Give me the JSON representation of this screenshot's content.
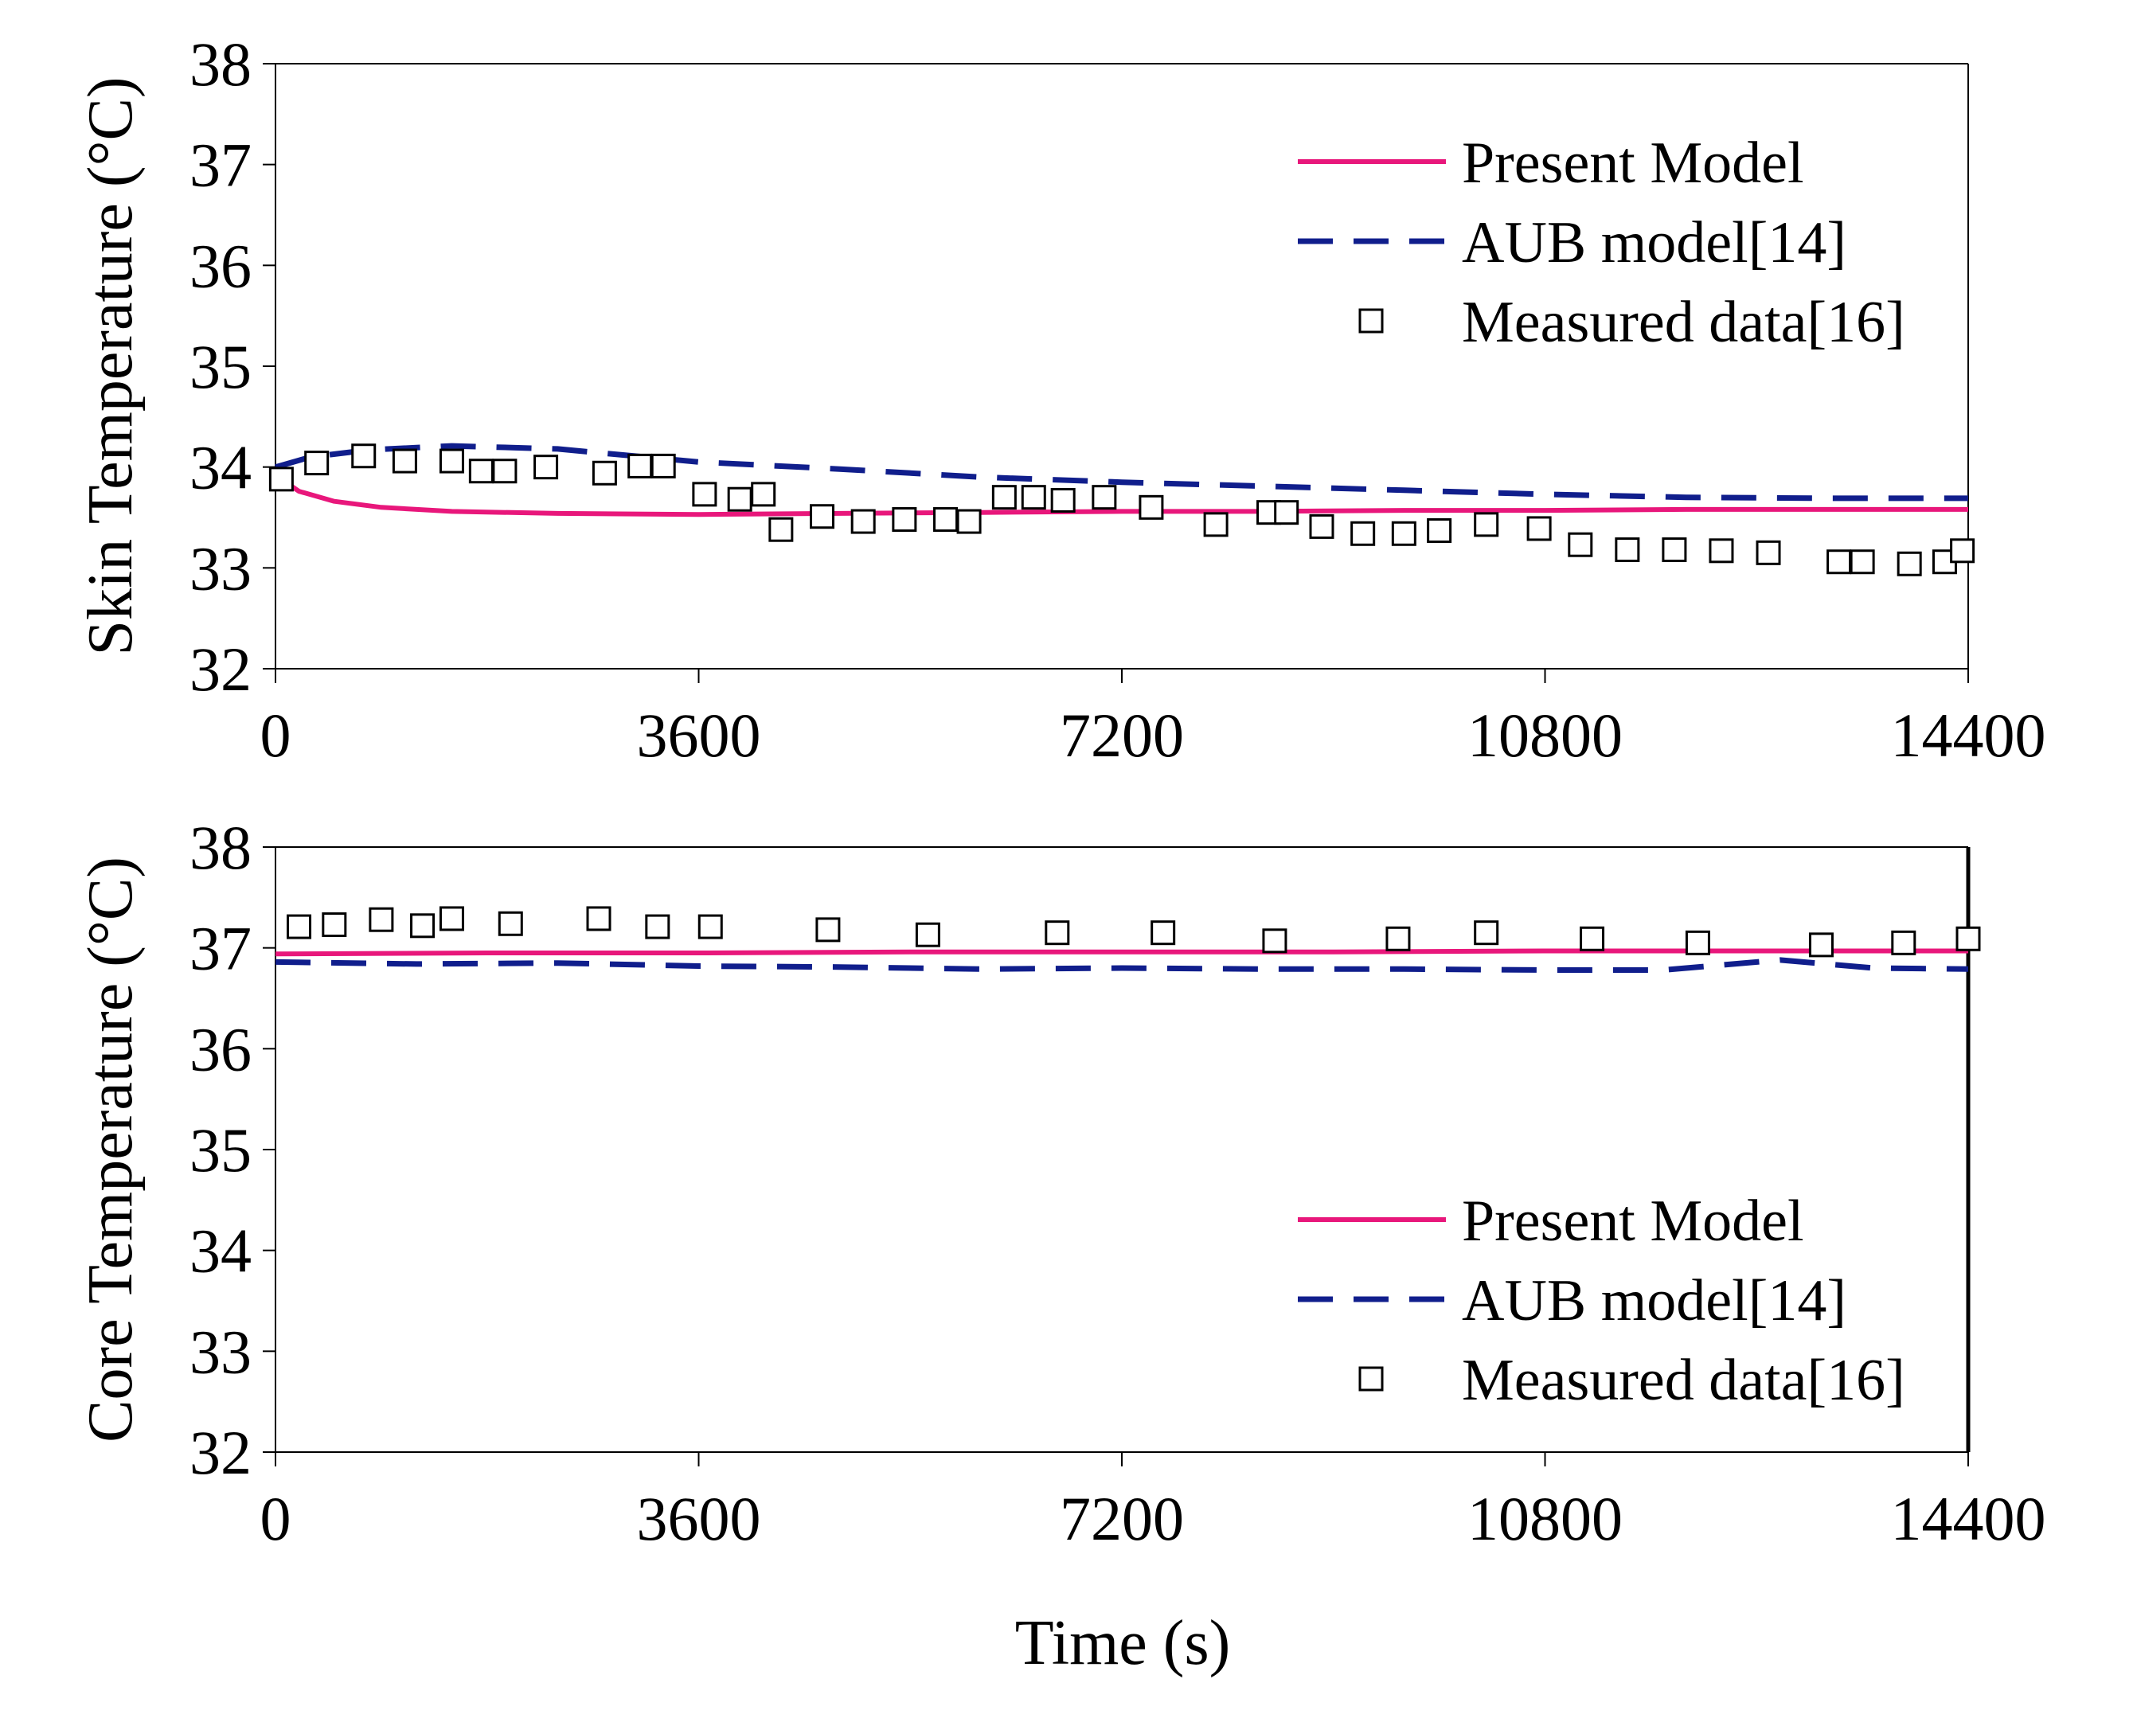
{
  "colors": {
    "present_model": "#e8177b",
    "aub_model": "#101e8c",
    "measured": "#000000",
    "frame": "#000000"
  },
  "shared_xlabel": "Time (s)",
  "chart_data": [
    {
      "type": "line",
      "title": "",
      "xlabel": "",
      "ylabel": "Skin Temperature (°C)",
      "xlim": [
        0,
        14400
      ],
      "ylim": [
        32,
        38
      ],
      "xticks": [
        0,
        3600,
        7200,
        10800,
        14400
      ],
      "yticks": [
        32,
        33,
        34,
        35,
        36,
        37,
        38
      ],
      "legend": {
        "placement": "top-right"
      },
      "series": [
        {
          "name": "Present Model",
          "style": "solid",
          "x": [
            0,
            200,
            500,
            900,
            1500,
            2400,
            3600,
            4800,
            6000,
            7200,
            8400,
            9600,
            10800,
            12000,
            13200,
            14400
          ],
          "y": [
            33.92,
            33.76,
            33.66,
            33.6,
            33.56,
            33.54,
            33.53,
            33.54,
            33.55,
            33.56,
            33.56,
            33.57,
            33.57,
            33.58,
            33.58,
            33.58
          ]
        },
        {
          "name": "AUB model[14]",
          "style": "dashed",
          "x": [
            0,
            300,
            800,
            1500,
            2400,
            3600,
            4800,
            6000,
            7200,
            8400,
            9600,
            10800,
            12000,
            13200,
            14400
          ],
          "y": [
            34.0,
            34.1,
            34.17,
            34.21,
            34.18,
            34.05,
            33.98,
            33.9,
            33.85,
            33.81,
            33.77,
            33.73,
            33.7,
            33.69,
            33.69
          ]
        },
        {
          "name": "Measured data[16]",
          "style": "markers",
          "x": [
            50,
            350,
            750,
            1100,
            1500,
            1750,
            1950,
            2300,
            2800,
            3100,
            3300,
            3650,
            3950,
            4150,
            4300,
            4650,
            5000,
            5350,
            5700,
            5900,
            6200,
            6450,
            6700,
            7050,
            7450,
            8000,
            8450,
            8600,
            8900,
            9250,
            9600,
            9900,
            10300,
            10750,
            11100,
            11500,
            11900,
            12300,
            12700,
            13300,
            13500,
            13900,
            14200,
            14350
          ],
          "y": [
            33.88,
            34.04,
            34.11,
            34.06,
            34.06,
            33.96,
            33.96,
            34.0,
            33.94,
            34.01,
            34.01,
            33.73,
            33.68,
            33.73,
            33.38,
            33.51,
            33.46,
            33.48,
            33.48,
            33.46,
            33.7,
            33.7,
            33.67,
            33.7,
            33.6,
            33.43,
            33.55,
            33.55,
            33.41,
            33.34,
            33.34,
            33.37,
            33.43,
            33.39,
            33.23,
            33.18,
            33.18,
            33.17,
            33.15,
            33.06,
            33.06,
            33.04,
            33.06,
            33.17
          ]
        }
      ]
    },
    {
      "type": "line",
      "title": "",
      "xlabel": "Time (s)",
      "ylabel": "Core Temperature (°C)",
      "xlim": [
        0,
        14400
      ],
      "ylim": [
        32,
        38
      ],
      "xticks": [
        0,
        3600,
        7200,
        10800,
        14400
      ],
      "yticks": [
        32,
        33,
        34,
        35,
        36,
        37,
        38
      ],
      "legend": {
        "placement": "bottom-right"
      },
      "series": [
        {
          "name": "Present Model",
          "style": "solid",
          "x": [
            0,
            1800,
            3600,
            5400,
            7200,
            9000,
            10800,
            12600,
            14400
          ],
          "y": [
            36.94,
            36.95,
            36.95,
            36.96,
            36.96,
            36.96,
            36.97,
            36.97,
            36.97
          ]
        },
        {
          "name": "AUB model[14]",
          "style": "dashed",
          "x": [
            0,
            1200,
            2400,
            3600,
            4800,
            6000,
            7200,
            8400,
            9600,
            10800,
            11800,
            12200,
            12800,
            13600,
            14400
          ],
          "y": [
            36.86,
            36.84,
            36.85,
            36.82,
            36.81,
            36.79,
            36.8,
            36.79,
            36.79,
            36.78,
            36.78,
            36.82,
            36.88,
            36.8,
            36.79
          ]
        },
        {
          "name": "Measured data[16]",
          "style": "markers",
          "x": [
            200,
            500,
            900,
            1250,
            1500,
            2000,
            2750,
            3250,
            3700,
            4700,
            5550,
            6650,
            7550,
            8500,
            9550,
            10300,
            11200,
            12100,
            13150,
            13850,
            14400
          ],
          "y": [
            37.21,
            37.23,
            37.28,
            37.22,
            37.29,
            37.24,
            37.29,
            37.21,
            37.21,
            37.18,
            37.13,
            37.15,
            37.15,
            37.07,
            37.09,
            37.15,
            37.09,
            37.05,
            37.03,
            37.05,
            37.09
          ]
        }
      ]
    }
  ]
}
